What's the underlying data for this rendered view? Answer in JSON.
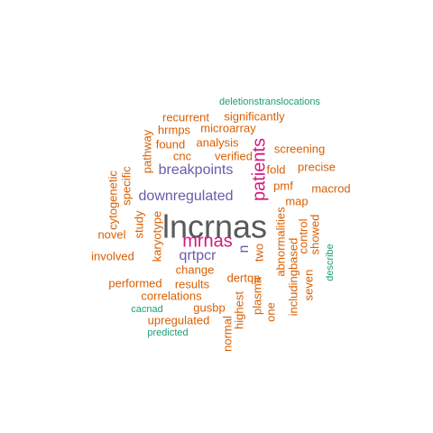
{
  "chart_data": {
    "type": "wordcloud",
    "colors": {
      "tier1": "#595959",
      "tier2": "#d4197e",
      "tier3": "#6a5aa9",
      "tier4": "#d95f02",
      "tier5": "#1b9e77"
    },
    "words": [
      {
        "text": "lncrnas",
        "tier": 1,
        "rotated": false
      },
      {
        "text": "mrnas",
        "tier": 2,
        "rotated": false
      },
      {
        "text": "patients",
        "tier": 2,
        "rotated": true
      },
      {
        "text": "breakpoints",
        "tier": 3,
        "rotated": false
      },
      {
        "text": "downregulated",
        "tier": 3,
        "rotated": false
      },
      {
        "text": "qrtpcr",
        "tier": 3,
        "rotated": false
      },
      {
        "text": "n",
        "tier": 3,
        "rotated": true
      },
      {
        "text": "recurrent",
        "tier": 4,
        "rotated": false
      },
      {
        "text": "significantly",
        "tier": 4,
        "rotated": false
      },
      {
        "text": "hrmps",
        "tier": 4,
        "rotated": false
      },
      {
        "text": "microarray",
        "tier": 4,
        "rotated": false
      },
      {
        "text": "analysis",
        "tier": 4,
        "rotated": false
      },
      {
        "text": "found",
        "tier": 4,
        "rotated": false
      },
      {
        "text": "cnc",
        "tier": 4,
        "rotated": false
      },
      {
        "text": "verified",
        "tier": 4,
        "rotated": false
      },
      {
        "text": "screening",
        "tier": 4,
        "rotated": false
      },
      {
        "text": "fold",
        "tier": 4,
        "rotated": false
      },
      {
        "text": "precise",
        "tier": 4,
        "rotated": false
      },
      {
        "text": "pmf",
        "tier": 4,
        "rotated": false
      },
      {
        "text": "macrod",
        "tier": 4,
        "rotated": false
      },
      {
        "text": "map",
        "tier": 4,
        "rotated": false
      },
      {
        "text": "pathway",
        "tier": 4,
        "rotated": true
      },
      {
        "text": "specific",
        "tier": 4,
        "rotated": true
      },
      {
        "text": "cytogenetic",
        "tier": 4,
        "rotated": true
      },
      {
        "text": "study",
        "tier": 4,
        "rotated": true
      },
      {
        "text": "karyotype",
        "tier": 4,
        "rotated": true
      },
      {
        "text": "novel",
        "tier": 4,
        "rotated": false
      },
      {
        "text": "involved",
        "tier": 4,
        "rotated": false
      },
      {
        "text": "change",
        "tier": 4,
        "rotated": false
      },
      {
        "text": "performed",
        "tier": 4,
        "rotated": false
      },
      {
        "text": "results",
        "tier": 4,
        "rotated": false
      },
      {
        "text": "dertqp",
        "tier": 4,
        "rotated": false
      },
      {
        "text": "correlations",
        "tier": 4,
        "rotated": false
      },
      {
        "text": "gusbp",
        "tier": 4,
        "rotated": false
      },
      {
        "text": "upregulated",
        "tier": 4,
        "rotated": false
      },
      {
        "text": "abnormalities",
        "tier": 4,
        "rotated": true
      },
      {
        "text": "two",
        "tier": 4,
        "rotated": true
      },
      {
        "text": "control",
        "tier": 4,
        "rotated": true
      },
      {
        "text": "showed",
        "tier": 4,
        "rotated": true
      },
      {
        "text": "includingbased",
        "tier": 4,
        "rotated": true
      },
      {
        "text": "seven",
        "tier": 4,
        "rotated": true
      },
      {
        "text": "one",
        "tier": 4,
        "rotated": true
      },
      {
        "text": "plasma",
        "tier": 4,
        "rotated": true
      },
      {
        "text": "highest",
        "tier": 4,
        "rotated": true
      },
      {
        "text": "normal",
        "tier": 4,
        "rotated": true
      },
      {
        "text": "deletionstranslocations",
        "tier": 5,
        "rotated": false
      },
      {
        "text": "describe",
        "tier": 5,
        "rotated": true
      },
      {
        "text": "cacnad",
        "tier": 5,
        "rotated": false
      },
      {
        "text": "predicted",
        "tier": 5,
        "rotated": false
      }
    ]
  }
}
